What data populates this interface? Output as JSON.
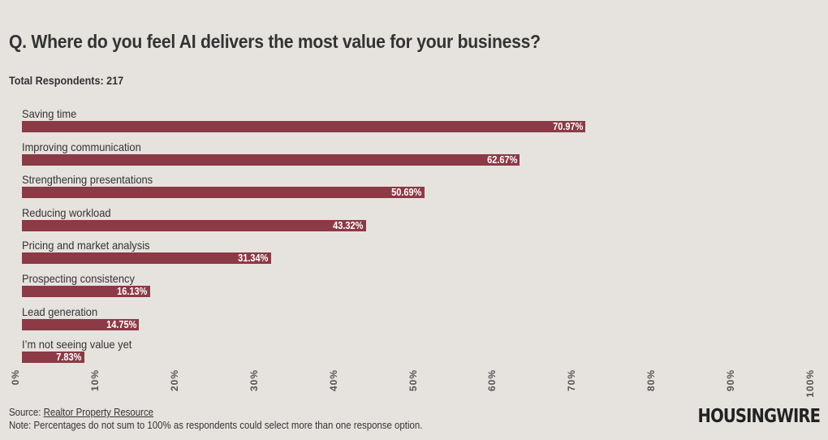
{
  "title": "Q. Where do you feel AI delivers the most value for your business?",
  "subtitle": "Total Respondents: 217",
  "footer": {
    "source_prefix": "Source: ",
    "source_link": "Realtor Property Resource",
    "note": "Note: Percentages do not sum to 100% as respondents could select more than one response option.",
    "logo": "HOUSINGWIRE"
  },
  "colors": {
    "bar": "#8b3a46",
    "background": "#e6e3df"
  },
  "chart_data": {
    "type": "bar",
    "orientation": "horizontal",
    "title": "Q. Where do you feel AI delivers the most value for your business?",
    "categories": [
      "Saving time",
      "Improving communication",
      "Strengthening presentations",
      "Reducing workload",
      "Pricing and market analysis",
      "Prospecting consistency",
      "Lead generation",
      "I’m not seeing value yet"
    ],
    "values": [
      70.97,
      62.67,
      50.69,
      43.32,
      31.34,
      16.13,
      14.75,
      7.83
    ],
    "value_labels": [
      "70.97%",
      "62.67%",
      "50.69%",
      "43.32%",
      "31.34%",
      "16.13%",
      "14.75%",
      "7.83%"
    ],
    "xlim": [
      0,
      100
    ],
    "x_ticks": [
      "0%",
      "10%",
      "20%",
      "30%",
      "40%",
      "50%",
      "60%",
      "70%",
      "80%",
      "90%",
      "100%"
    ],
    "grid": false,
    "legend": "none"
  }
}
